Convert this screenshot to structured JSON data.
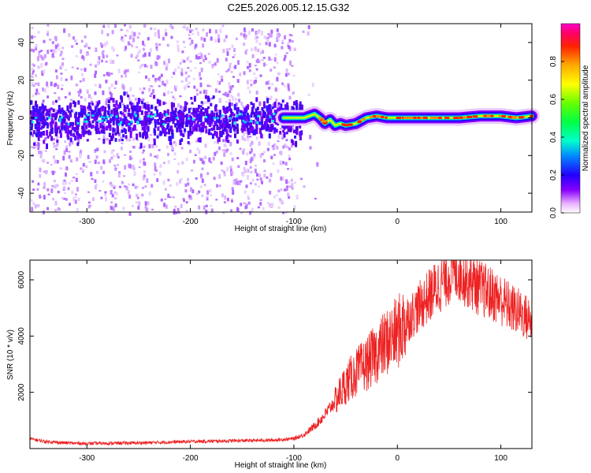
{
  "title": "C2E5.2026.005.12.15.G32",
  "chart_data": [
    {
      "type": "heatmap",
      "name": "spectrogram",
      "xlabel": "Height of straight line (km)",
      "ylabel": "Frequency (Hz)",
      "xlim": [
        -355,
        130
      ],
      "ylim": [
        -50,
        50
      ],
      "xticks": [
        -300,
        -200,
        -100,
        0,
        100
      ],
      "xtick_labels": [
        "-300",
        "-200",
        "-100",
        "0",
        "100"
      ],
      "yticks": [
        -40,
        -20,
        0,
        20,
        40
      ],
      "ytick_labels": [
        "-40",
        "-20",
        "0",
        "20",
        "40"
      ],
      "ridge": {
        "x": [
          -355,
          -300,
          -200,
          -110,
          -100,
          -90,
          -80,
          -75,
          -70,
          -65,
          -60,
          -55,
          -50,
          -40,
          -30,
          -20,
          -10,
          0,
          20,
          40,
          60,
          80,
          100,
          115,
          130
        ],
        "y": [
          0,
          0,
          0,
          0,
          0,
          0,
          2,
          0,
          -3,
          -1,
          -4,
          -3,
          -4,
          -3,
          0,
          1,
          0,
          0,
          0,
          0,
          0,
          1,
          1,
          0,
          1
        ]
      },
      "colorbar": {
        "label": "Normalized spectral amplitude",
        "range": [
          0,
          1
        ],
        "ticks": [
          0.0,
          0.2,
          0.4,
          0.6,
          0.8
        ],
        "tick_labels": [
          "0.0",
          "0.2",
          "0.4",
          "0.6",
          "0.8"
        ]
      }
    },
    {
      "type": "line",
      "name": "snr",
      "xlabel": "Height of straight line (km)",
      "ylabel": "SNR (10 * v/v)",
      "xlim": [
        -355,
        130
      ],
      "ylim": [
        0,
        6700
      ],
      "xticks": [
        -300,
        -200,
        -100,
        0,
        100
      ],
      "xtick_labels": [
        "-300",
        "-200",
        "-100",
        "0",
        "100"
      ],
      "yticks": [
        2000,
        4000,
        6000
      ],
      "ytick_labels": [
        "2000",
        "4000",
        "6000"
      ],
      "color": "#ee2222",
      "series": {
        "x": [
          -355,
          -340,
          -320,
          -300,
          -250,
          -200,
          -150,
          -120,
          -100,
          -90,
          -80,
          -70,
          -60,
          -50,
          -40,
          -30,
          -20,
          -10,
          0,
          10,
          20,
          30,
          40,
          50,
          55,
          60,
          70,
          80,
          90,
          100,
          110,
          120,
          130
        ],
        "y": [
          350,
          250,
          200,
          180,
          200,
          250,
          280,
          300,
          350,
          500,
          800,
          1200,
          1700,
          2300,
          2700,
          3000,
          3400,
          3800,
          4100,
          4600,
          5000,
          5400,
          5800,
          6200,
          6400,
          6300,
          6000,
          5700,
          5500,
          5300,
          5000,
          4800,
          4500
        ]
      }
    }
  ]
}
